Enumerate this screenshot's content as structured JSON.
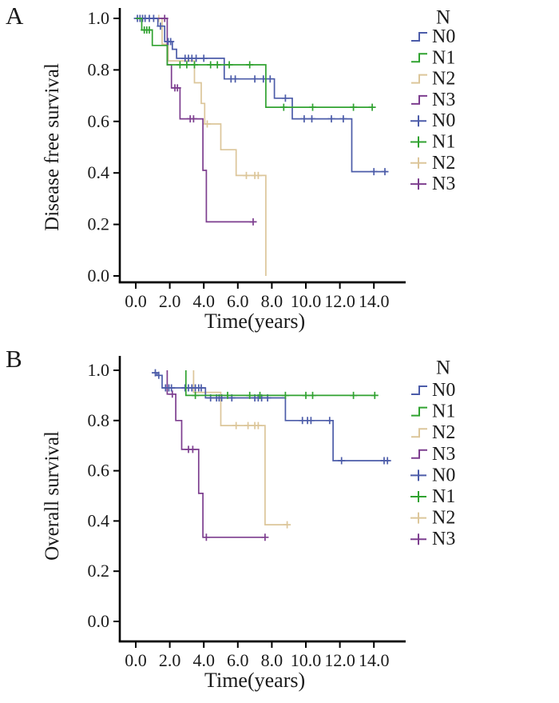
{
  "figure": {
    "background": "#ffffff",
    "panel_letters": [
      "A",
      "B"
    ]
  },
  "colors": {
    "N0": "#4c5ca9",
    "N1": "#30a230",
    "N2": "#dcc69a",
    "N3": "#7d3e8f",
    "axis": "#000000",
    "text": "#1a1a1a"
  },
  "chart_data": [
    {
      "type": "line",
      "subtype": "kaplan-meier-step",
      "panel_label": "A",
      "xlabel": "Time(years)",
      "ylabel": "Disease free survival",
      "x_ticks": [
        "0.0",
        "2.0",
        "4.0",
        "6.0",
        "8.0",
        "10.0",
        "12.0",
        "14.0"
      ],
      "x_tick_values": [
        0,
        2,
        4,
        6,
        8,
        10,
        12,
        14
      ],
      "y_ticks": [
        "0.0",
        "0.2",
        "0.4",
        "0.6",
        "0.8",
        "1.0"
      ],
      "y_tick_values": [
        0,
        0.2,
        0.4,
        0.6,
        0.8,
        1.0
      ],
      "xlim": [
        0,
        15.8
      ],
      "ylim": [
        0,
        1.0
      ],
      "grid": false,
      "legend": {
        "title": "N",
        "position": "right",
        "line_entries": [
          "N0",
          "N1",
          "N2",
          "N3"
        ],
        "censor_entries": [
          "N0",
          "N1",
          "N2",
          "N3"
        ]
      },
      "series": [
        {
          "name": "N0",
          "color_key": "N0",
          "points": [
            [
              0,
              1
            ],
            [
              1.3,
              1
            ],
            [
              1.3,
              0.97
            ],
            [
              1.7,
              0.97
            ],
            [
              1.7,
              0.91
            ],
            [
              2.15,
              0.91
            ],
            [
              2.15,
              0.88
            ],
            [
              2.4,
              0.88
            ],
            [
              2.4,
              0.845
            ],
            [
              5.2,
              0.845
            ],
            [
              5.2,
              0.765
            ],
            [
              8.15,
              0.765
            ],
            [
              8.15,
              0.69
            ],
            [
              9.2,
              0.69
            ],
            [
              9.2,
              0.61
            ],
            [
              12.7,
              0.61
            ],
            [
              12.7,
              0.405
            ],
            [
              14.75,
              0.405
            ]
          ],
          "censor_marks": [
            [
              0.1,
              1
            ],
            [
              0.25,
              1
            ],
            [
              0.4,
              1
            ],
            [
              0.55,
              1
            ],
            [
              0.8,
              1
            ],
            [
              1.05,
              1
            ],
            [
              1.45,
              0.97
            ],
            [
              1.9,
              0.91
            ],
            [
              2.05,
              0.91
            ],
            [
              2.9,
              0.845
            ],
            [
              3.1,
              0.845
            ],
            [
              3.3,
              0.845
            ],
            [
              3.55,
              0.845
            ],
            [
              4.0,
              0.845
            ],
            [
              5.6,
              0.765
            ],
            [
              5.85,
              0.765
            ],
            [
              7.0,
              0.765
            ],
            [
              7.5,
              0.765
            ],
            [
              7.9,
              0.765
            ],
            [
              8.8,
              0.69
            ],
            [
              9.9,
              0.61
            ],
            [
              10.35,
              0.61
            ],
            [
              11.5,
              0.61
            ],
            [
              12.2,
              0.61
            ],
            [
              14.0,
              0.405
            ],
            [
              14.65,
              0.405
            ]
          ]
        },
        {
          "name": "N1",
          "color_key": "N1",
          "points": [
            [
              0,
              1
            ],
            [
              0.35,
              1
            ],
            [
              0.35,
              0.955
            ],
            [
              0.97,
              0.955
            ],
            [
              0.97,
              0.895
            ],
            [
              1.85,
              0.895
            ],
            [
              1.85,
              0.82
            ],
            [
              7.65,
              0.82
            ],
            [
              7.65,
              0.655
            ],
            [
              13.9,
              0.655
            ]
          ],
          "censor_marks": [
            [
              0.5,
              0.955
            ],
            [
              0.65,
              0.955
            ],
            [
              0.8,
              0.955
            ],
            [
              2.6,
              0.82
            ],
            [
              3.0,
              0.82
            ],
            [
              3.45,
              0.82
            ],
            [
              4.4,
              0.82
            ],
            [
              4.8,
              0.82
            ],
            [
              5.5,
              0.82
            ],
            [
              6.7,
              0.82
            ],
            [
              8.7,
              0.655
            ],
            [
              10.4,
              0.655
            ],
            [
              12.8,
              0.655
            ],
            [
              13.9,
              0.655
            ]
          ]
        },
        {
          "name": "N2",
          "color_key": "N2",
          "points": [
            [
              0,
              1
            ],
            [
              1.55,
              1
            ],
            [
              1.55,
              0.9
            ],
            [
              1.9,
              0.9
            ],
            [
              1.9,
              0.835
            ],
            [
              3.45,
              0.835
            ],
            [
              3.45,
              0.75
            ],
            [
              3.85,
              0.75
            ],
            [
              3.85,
              0.67
            ],
            [
              4.05,
              0.67
            ],
            [
              4.05,
              0.59
            ],
            [
              5.0,
              0.59
            ],
            [
              5.0,
              0.49
            ],
            [
              5.9,
              0.49
            ],
            [
              5.9,
              0.39
            ],
            [
              7.65,
              0.39
            ],
            [
              7.65,
              0
            ]
          ],
          "censor_marks": [
            [
              1.35,
              1
            ],
            [
              4.2,
              0.59
            ],
            [
              6.5,
              0.39
            ],
            [
              7.0,
              0.39
            ],
            [
              7.2,
              0.39
            ]
          ]
        },
        {
          "name": "N3",
          "color_key": "N3",
          "points": [
            [
              0,
              1
            ],
            [
              1.85,
              1
            ],
            [
              1.85,
              0.82
            ],
            [
              2.1,
              0.82
            ],
            [
              2.1,
              0.73
            ],
            [
              2.6,
              0.73
            ],
            [
              2.6,
              0.61
            ],
            [
              3.95,
              0.61
            ],
            [
              3.95,
              0.41
            ],
            [
              4.15,
              0.41
            ],
            [
              4.15,
              0.21
            ],
            [
              6.9,
              0.21
            ]
          ],
          "censor_marks": [
            [
              1.7,
              1
            ],
            [
              2.3,
              0.73
            ],
            [
              2.45,
              0.73
            ],
            [
              3.2,
              0.61
            ],
            [
              3.4,
              0.61
            ],
            [
              6.9,
              0.21
            ]
          ]
        }
      ]
    },
    {
      "type": "line",
      "subtype": "kaplan-meier-step",
      "panel_label": "B",
      "xlabel": "Time(years)",
      "ylabel": "Overall survival",
      "x_ticks": [
        "0.0",
        "2.0",
        "4.0",
        "6.0",
        "8.0",
        "10.0",
        "12.0",
        "14.0"
      ],
      "x_tick_values": [
        0,
        2,
        4,
        6,
        8,
        10,
        12,
        14
      ],
      "y_ticks": [
        "0.0",
        "0.2",
        "0.4",
        "0.6",
        "0.8",
        "1.0"
      ],
      "y_tick_values": [
        0,
        0.2,
        0.4,
        0.6,
        0.8,
        1.0
      ],
      "xlim": [
        0,
        15.8
      ],
      "ylim": [
        0,
        1.0
      ],
      "grid": false,
      "legend": {
        "title": "N",
        "position": "right",
        "line_entries": [
          "N0",
          "N1",
          "N2",
          "N3"
        ],
        "censor_entries": [
          "N0",
          "N1",
          "N2",
          "N3"
        ]
      },
      "series": [
        {
          "name": "N0",
          "color_key": "N0",
          "points": [
            [
              1.05,
              0.99
            ],
            [
              1.25,
              0.99
            ],
            [
              1.25,
              0.98
            ],
            [
              1.55,
              0.98
            ],
            [
              1.55,
              0.93
            ],
            [
              4.1,
              0.93
            ],
            [
              4.1,
              0.89
            ],
            [
              8.8,
              0.89
            ],
            [
              8.8,
              0.8
            ],
            [
              11.6,
              0.8
            ],
            [
              11.6,
              0.64
            ],
            [
              14.9,
              0.64
            ]
          ],
          "censor_marks": [
            [
              1.15,
              0.99
            ],
            [
              1.35,
              0.98
            ],
            [
              1.75,
              0.93
            ],
            [
              1.95,
              0.93
            ],
            [
              2.1,
              0.93
            ],
            [
              2.9,
              0.93
            ],
            [
              3.1,
              0.93
            ],
            [
              3.3,
              0.93
            ],
            [
              3.5,
              0.93
            ],
            [
              3.7,
              0.93
            ],
            [
              3.85,
              0.93
            ],
            [
              4.4,
              0.89
            ],
            [
              4.75,
              0.89
            ],
            [
              4.9,
              0.89
            ],
            [
              5.05,
              0.89
            ],
            [
              5.65,
              0.89
            ],
            [
              7.0,
              0.89
            ],
            [
              7.2,
              0.89
            ],
            [
              7.4,
              0.89
            ],
            [
              7.75,
              0.89
            ],
            [
              9.8,
              0.8
            ],
            [
              10.1,
              0.8
            ],
            [
              10.3,
              0.8
            ],
            [
              11.4,
              0.8
            ],
            [
              12.1,
              0.64
            ],
            [
              14.6,
              0.64
            ],
            [
              14.8,
              0.64
            ]
          ]
        },
        {
          "name": "N1",
          "color_key": "N1",
          "points": [
            [
              2.95,
              1
            ],
            [
              2.95,
              0.9
            ],
            [
              14.05,
              0.9
            ]
          ],
          "censor_marks": [
            [
              3.5,
              0.9
            ],
            [
              5.4,
              0.9
            ],
            [
              6.7,
              0.9
            ],
            [
              7.3,
              0.9
            ],
            [
              8.8,
              0.9
            ],
            [
              10.0,
              0.9
            ],
            [
              10.4,
              0.9
            ],
            [
              12.8,
              0.9
            ],
            [
              14.05,
              0.9
            ]
          ]
        },
        {
          "name": "N2",
          "color_key": "N2",
          "points": [
            [
              3.4,
              1
            ],
            [
              3.4,
              0.912
            ],
            [
              5.0,
              0.912
            ],
            [
              5.0,
              0.78
            ],
            [
              7.6,
              0.78
            ],
            [
              7.6,
              0.385
            ],
            [
              8.9,
              0.385
            ]
          ],
          "censor_marks": [
            [
              5.9,
              0.78
            ],
            [
              6.6,
              0.78
            ],
            [
              7.0,
              0.78
            ],
            [
              7.2,
              0.78
            ],
            [
              8.9,
              0.385
            ]
          ]
        },
        {
          "name": "N3",
          "color_key": "N3",
          "points": [
            [
              1.85,
              1
            ],
            [
              1.85,
              0.905
            ],
            [
              2.35,
              0.905
            ],
            [
              2.35,
              0.8
            ],
            [
              2.7,
              0.8
            ],
            [
              2.7,
              0.685
            ],
            [
              3.7,
              0.685
            ],
            [
              3.7,
              0.51
            ],
            [
              3.95,
              0.51
            ],
            [
              3.95,
              0.335
            ],
            [
              7.6,
              0.335
            ]
          ],
          "censor_marks": [
            [
              2.15,
              0.905
            ],
            [
              3.1,
              0.685
            ],
            [
              3.35,
              0.685
            ],
            [
              4.15,
              0.335
            ],
            [
              7.6,
              0.335
            ]
          ]
        }
      ]
    }
  ]
}
